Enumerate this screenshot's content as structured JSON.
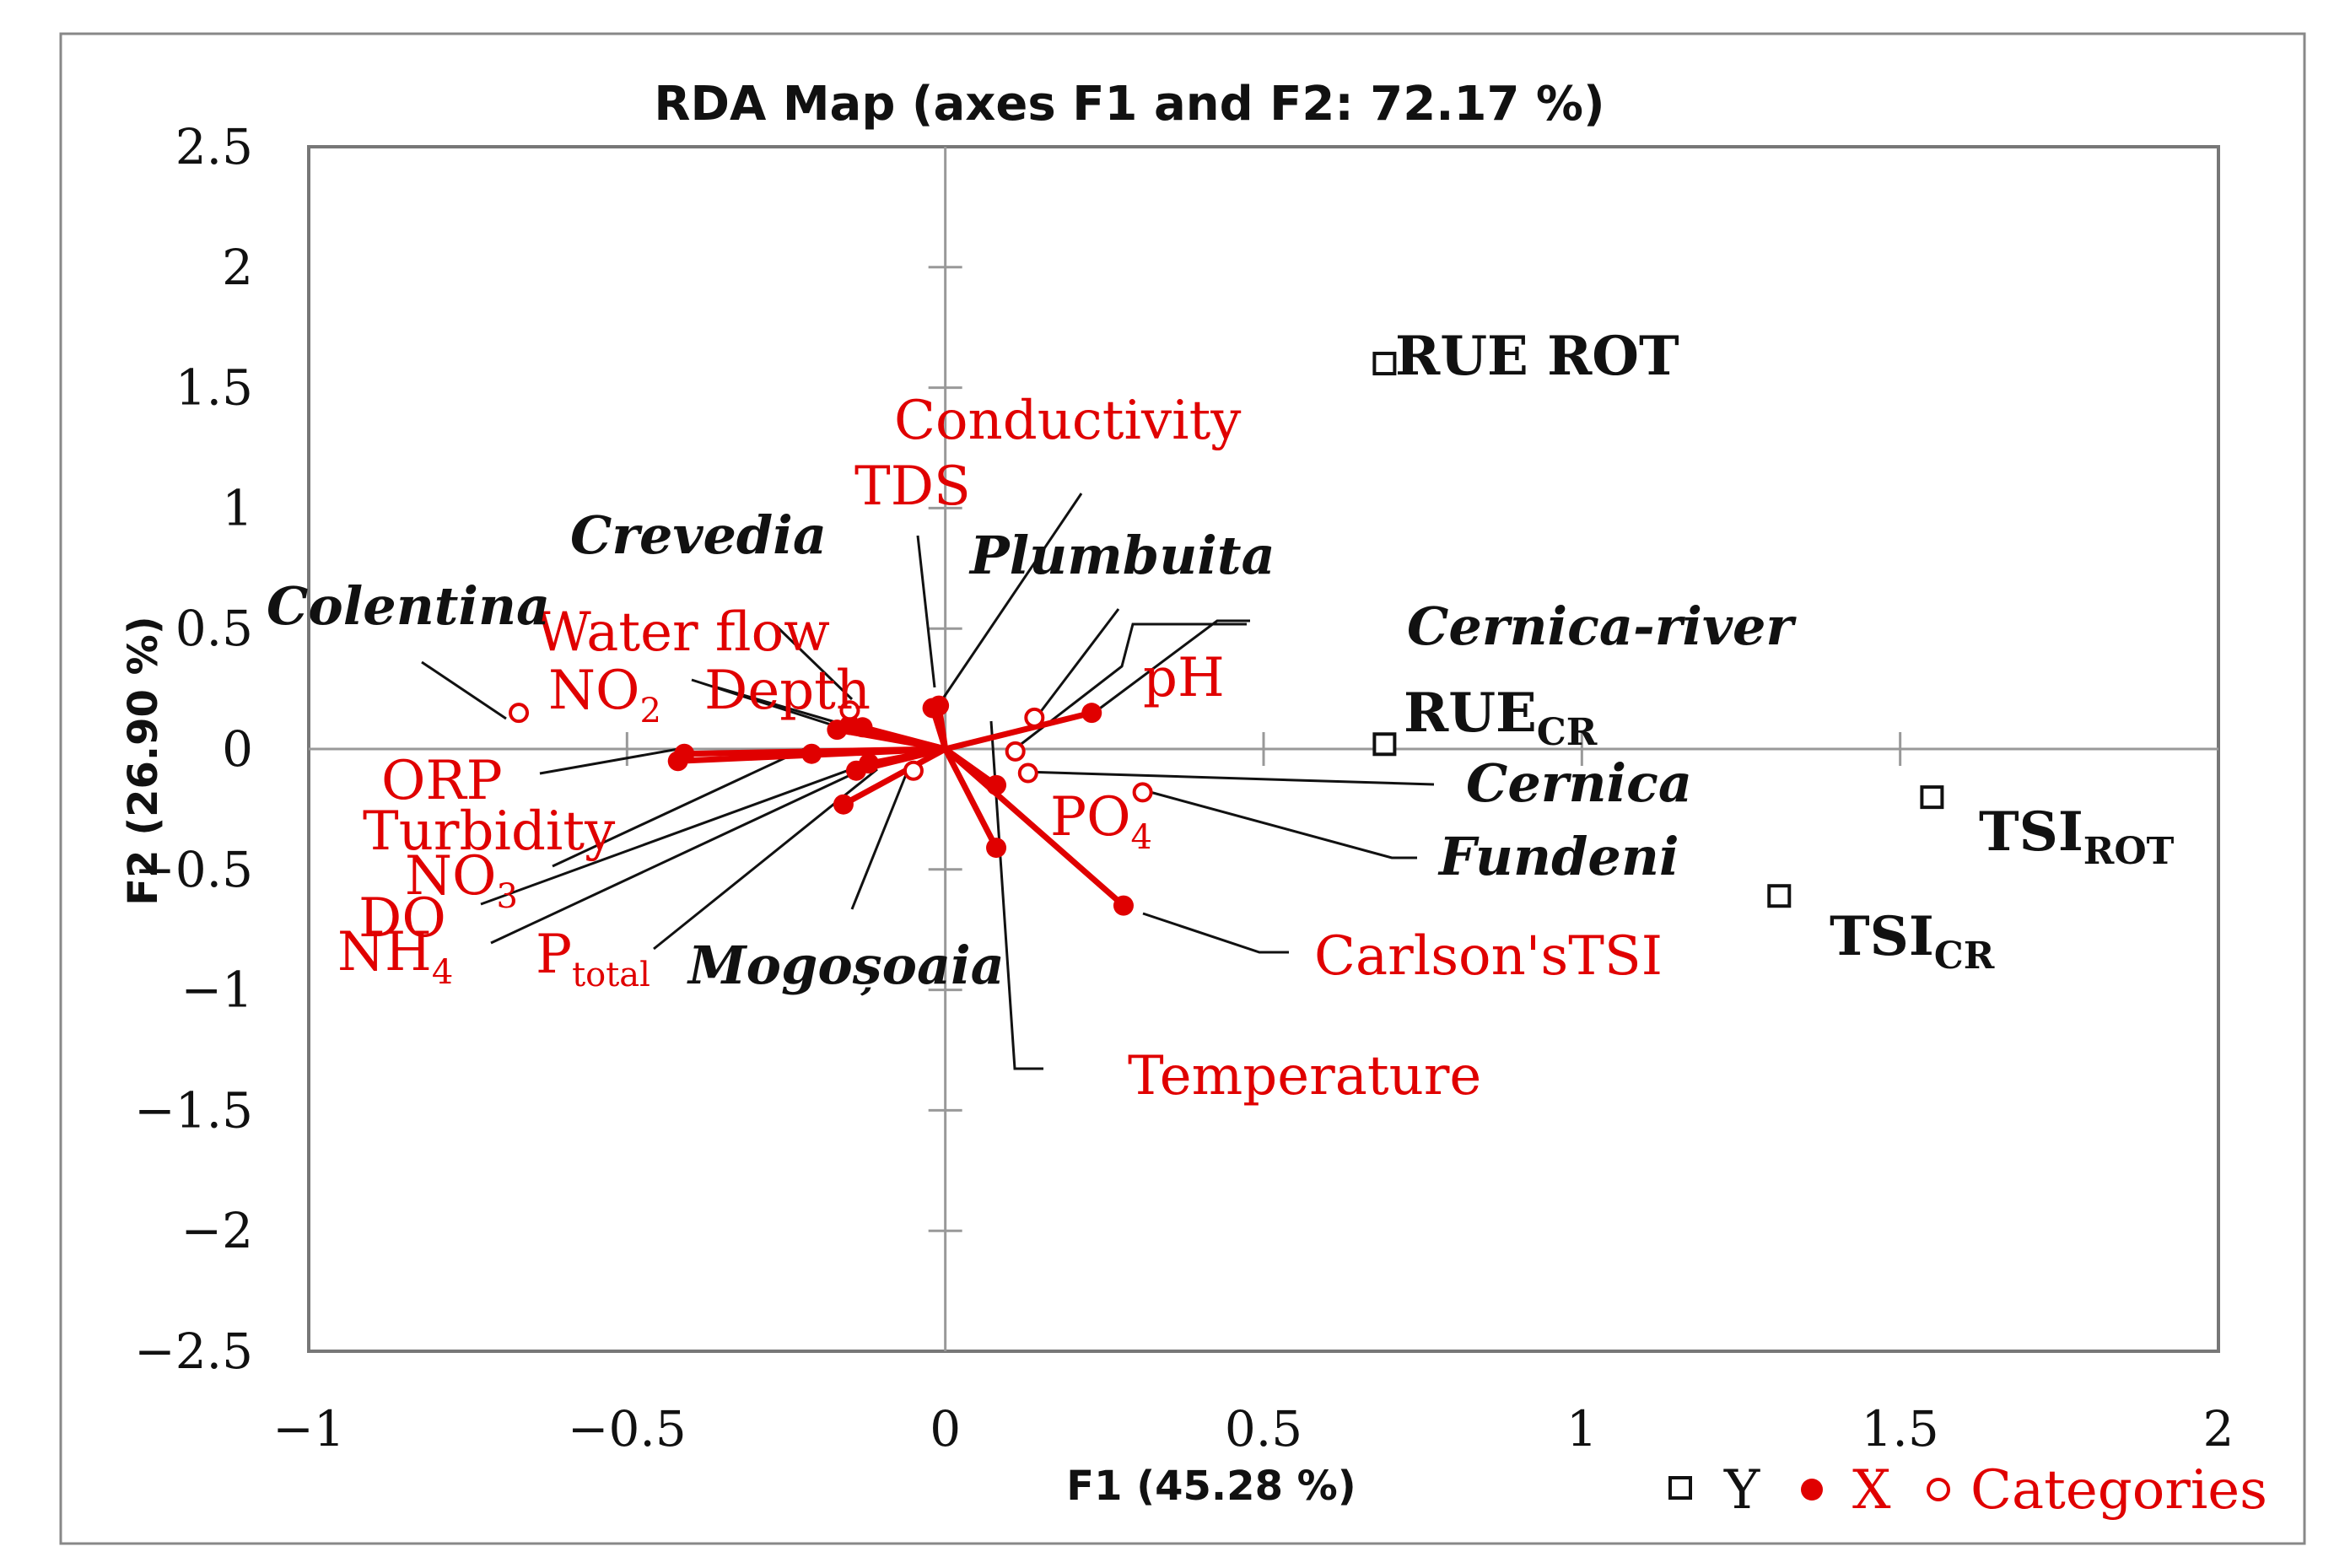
{
  "chart_data": {
    "type": "scatter",
    "subtype": "rda-biplot",
    "title": "RDA Map (axes F1 and F2: 72.17 %)",
    "xlabel": "F1 (45.28 %)",
    "ylabel": "F2 (26.90 %)",
    "xlim": [
      -1,
      2
    ],
    "ylim": [
      -2.5,
      2.5
    ],
    "x_ticks": [
      "−1",
      "−0.5",
      "0",
      "0.5",
      "1",
      "1.5",
      "2"
    ],
    "y_ticks": [
      "2.5",
      "2",
      "1.5",
      "1",
      "0.5",
      "0",
      "−0.5",
      "−1",
      "−1.5",
      "−2",
      "−2.5"
    ],
    "colors": {
      "x_series": "#e00000",
      "y_series": "#111111",
      "categories": "#e00000",
      "axis": "#999999"
    },
    "legend": {
      "position": "bottom-right",
      "items": [
        {
          "symbol": "open-square",
          "label": "Y"
        },
        {
          "symbol": "filled-circle",
          "label": "X"
        },
        {
          "symbol": "open-circle",
          "label": "Categories"
        }
      ]
    },
    "x_variables": [
      {
        "name": "Conductivity",
        "x": -0.01,
        "y": 0.18
      },
      {
        "name": "TDS",
        "x": -0.02,
        "y": 0.17
      },
      {
        "name": "pH",
        "x": 0.23,
        "y": 0.15
      },
      {
        "name": "Water flow",
        "x": -0.15,
        "y": 0.1
      },
      {
        "name": "NO",
        "sub": "2",
        "x": -0.17,
        "y": 0.08
      },
      {
        "name": "Depth",
        "x": -0.13,
        "y": 0.09
      },
      {
        "name": "ORP",
        "x": -0.41,
        "y": -0.02
      },
      {
        "name": "Turbidity",
        "x": -0.42,
        "y": -0.05
      },
      {
        "name": "NO",
        "sub": "3",
        "x": -0.21,
        "y": -0.02
      },
      {
        "name": "DO",
        "x": -0.12,
        "y": -0.06
      },
      {
        "name": "NH",
        "sub": "4",
        "x": -0.14,
        "y": -0.09
      },
      {
        "name": "P",
        "sub": "total",
        "x": -0.16,
        "y": -0.23
      },
      {
        "name": "PO",
        "sub": "4",
        "x": 0.08,
        "y": -0.15
      },
      {
        "name": "Temperature",
        "x": 0.08,
        "y": -0.41
      },
      {
        "name": "Carlson'sTSI",
        "x": 0.28,
        "y": -0.65
      }
    ],
    "y_variables": [
      {
        "name": "RUE ROT",
        "x": 0.69,
        "y": 1.6
      },
      {
        "name": "RUE",
        "sub": "CR",
        "x": 0.69,
        "y": 0.02
      },
      {
        "name": "TSI",
        "sub": "ROT",
        "x": 1.55,
        "y": -0.2
      },
      {
        "name": "TSI",
        "sub": "CR",
        "x": 1.31,
        "y": -0.61
      }
    ],
    "categories": [
      {
        "name": "Colentina",
        "x": -0.67,
        "y": 0.15
      },
      {
        "name": "Crevedia",
        "x": -0.15,
        "y": 0.16
      },
      {
        "name": "Plumbuita",
        "x": 0.14,
        "y": 0.13
      },
      {
        "name": "Cernica-river",
        "x": 0.11,
        "y": -0.01
      },
      {
        "name": "Cernica",
        "x": 0.13,
        "y": -0.1
      },
      {
        "name": "Fundeni",
        "x": 0.31,
        "y": -0.18
      },
      {
        "name": "Mogoșoaia",
        "x": -0.05,
        "y": -0.09
      }
    ]
  }
}
